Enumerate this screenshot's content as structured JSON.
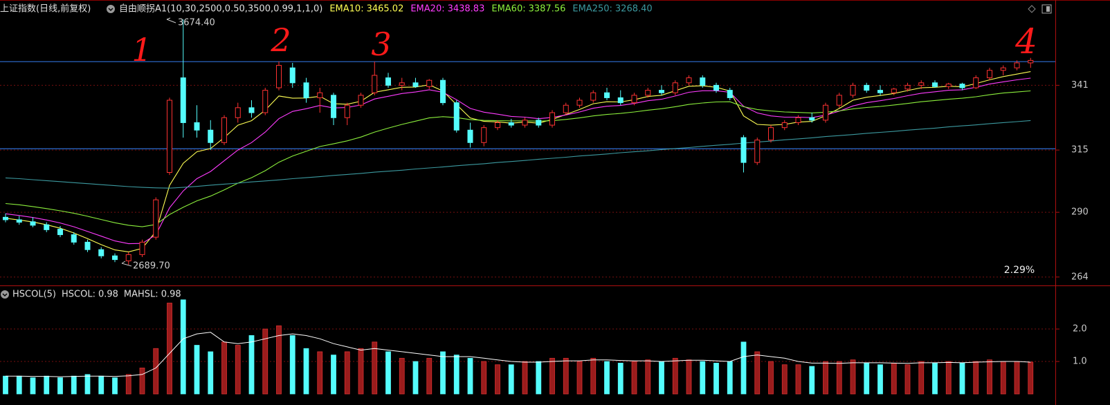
{
  "chart_data": [
    {
      "type": "candlestick",
      "title": "上证指数(日线,前复权)",
      "indicator": "自由顺拐A1(10,30,2500,0.50,3500,0.99,1,1,0)",
      "up_color": "#ff3232",
      "down_color": "#54fcfc",
      "open": [
        2880,
        2870,
        2862,
        2850,
        2832,
        2810,
        2780,
        2750,
        2725,
        2705,
        2730,
        2800,
        3060,
        3440,
        3260,
        3230,
        3180,
        3280,
        3320,
        3300,
        3400,
        3480,
        3420,
        3360,
        3370,
        3280,
        3330,
        3380,
        3440,
        3410,
        3420,
        3405,
        3430,
        3340,
        3230,
        3180,
        3240,
        3260,
        3250,
        3270,
        3250,
        3300,
        3330,
        3350,
        3380,
        3360,
        3340,
        3370,
        3390,
        3380,
        3420,
        3440,
        3410,
        3390,
        3200,
        3100,
        3190,
        3240,
        3260,
        3280,
        3270,
        3330,
        3370,
        3410,
        3390,
        3380,
        3395,
        3410,
        3420,
        3405,
        3415,
        3400,
        3440,
        3470,
        3480,
        3500
      ],
      "high": [
        2895,
        2885,
        2880,
        2860,
        2845,
        2820,
        2790,
        2760,
        2735,
        2740,
        2790,
        2960,
        3360,
        3674.4,
        3330,
        3270,
        3290,
        3340,
        3350,
        3400,
        3505,
        3500,
        3440,
        3400,
        3380,
        3340,
        3380,
        3505,
        3460,
        3440,
        3440,
        3435,
        3440,
        3350,
        3260,
        3250,
        3270,
        3275,
        3280,
        3280,
        3310,
        3340,
        3360,
        3390,
        3400,
        3390,
        3380,
        3400,
        3410,
        3430,
        3450,
        3450,
        3420,
        3400,
        3210,
        3200,
        3250,
        3270,
        3290,
        3300,
        3340,
        3380,
        3420,
        3420,
        3410,
        3400,
        3420,
        3430,
        3430,
        3420,
        3420,
        3450,
        3480,
        3490,
        3510,
        3520
      ],
      "low": [
        2860,
        2850,
        2840,
        2820,
        2800,
        2770,
        2740,
        2715,
        2700,
        2689.7,
        2720,
        2790,
        3050,
        3200,
        3200,
        3150,
        3170,
        3260,
        3280,
        3290,
        3390,
        3400,
        3340,
        3300,
        3250,
        3250,
        3320,
        3370,
        3400,
        3390,
        3400,
        3395,
        3330,
        3220,
        3160,
        3165,
        3230,
        3240,
        3240,
        3240,
        3240,
        3290,
        3320,
        3340,
        3350,
        3330,
        3330,
        3360,
        3370,
        3370,
        3410,
        3400,
        3380,
        3350,
        3060,
        3090,
        3180,
        3230,
        3250,
        3260,
        3260,
        3320,
        3360,
        3380,
        3370,
        3370,
        3385,
        3395,
        3400,
        3395,
        3390,
        3395,
        3430,
        3450,
        3470,
        3480
      ],
      "close": [
        2870,
        2860,
        2848,
        2830,
        2810,
        2780,
        2750,
        2725,
        2710,
        2730,
        2780,
        2950,
        3350,
        3260,
        3230,
        3180,
        3280,
        3320,
        3300,
        3390,
        3490,
        3420,
        3360,
        3380,
        3280,
        3330,
        3370,
        3450,
        3410,
        3420,
        3405,
        3430,
        3340,
        3230,
        3180,
        3240,
        3260,
        3250,
        3270,
        3250,
        3300,
        3330,
        3350,
        3380,
        3360,
        3340,
        3370,
        3390,
        3380,
        3420,
        3440,
        3410,
        3390,
        3360,
        3100,
        3190,
        3240,
        3260,
        3280,
        3270,
        3330,
        3370,
        3410,
        3390,
        3380,
        3395,
        3410,
        3420,
        3405,
        3415,
        3400,
        3440,
        3470,
        3480,
        3500,
        3510
      ],
      "series": [
        {
          "name": "EMA10:",
          "last_label": "3465.02",
          "color": "#ffff54",
          "values": [
            2876,
            2869,
            2861,
            2850,
            2836,
            2817,
            2794,
            2770,
            2749,
            2741,
            2755,
            2823,
            3008,
            3097,
            3143,
            3156,
            3200,
            3250,
            3268,
            3310,
            3367,
            3358,
            3359,
            3366,
            3336,
            3334,
            3346,
            3382,
            3392,
            3402,
            3403,
            3412,
            3387,
            3332,
            3279,
            3265,
            3263,
            3258,
            3262,
            3258,
            3273,
            3293,
            3313,
            3336,
            3344,
            3343,
            3352,
            3365,
            3370,
            3388,
            3406,
            3408,
            3402,
            3387,
            3287,
            3253,
            3250,
            3253,
            3262,
            3265,
            3288,
            3317,
            3350,
            3362,
            3369,
            3377,
            3389,
            3400,
            3402,
            3406,
            3404,
            3417,
            3432,
            3445,
            3455,
            3465.02
          ]
        },
        {
          "name": "EMA20:",
          "last_label": "3438.83",
          "color": "#ff3cff",
          "values": [
            2894,
            2887,
            2879,
            2869,
            2857,
            2842,
            2823,
            2804,
            2785,
            2774,
            2775,
            2810,
            2918,
            2986,
            3035,
            3064,
            3107,
            3150,
            3180,
            3222,
            3276,
            3305,
            3316,
            3329,
            3319,
            3321,
            3331,
            3355,
            3366,
            3377,
            3383,
            3392,
            3382,
            3352,
            3317,
            3302,
            3294,
            3285,
            3282,
            3276,
            3281,
            3291,
            3303,
            3318,
            3326,
            3329,
            3337,
            3348,
            3354,
            3367,
            3382,
            3388,
            3388,
            3382,
            3326,
            3299,
            3287,
            3282,
            3282,
            3280,
            3290,
            3306,
            3327,
            3340,
            3348,
            3357,
            3368,
            3378,
            3384,
            3390,
            3392,
            3402,
            3415,
            3424,
            3432,
            3438.83
          ]
        },
        {
          "name": "EMA60:",
          "last_label": "3387.56",
          "color": "#8cf03c",
          "values": [
            2935,
            2930,
            2923,
            2915,
            2906,
            2896,
            2884,
            2871,
            2858,
            2848,
            2842,
            2851,
            2891,
            2920,
            2946,
            2965,
            2990,
            3017,
            3039,
            3067,
            3101,
            3126,
            3145,
            3164,
            3175,
            3187,
            3202,
            3222,
            3238,
            3253,
            3266,
            3279,
            3284,
            3280,
            3272,
            3269,
            3268,
            3267,
            3267,
            3266,
            3268,
            3273,
            3279,
            3287,
            3293,
            3297,
            3303,
            3310,
            3316,
            3324,
            3333,
            3339,
            3343,
            3344,
            3324,
            3313,
            3307,
            3303,
            3301,
            3299,
            3302,
            3307,
            3315,
            3321,
            3325,
            3331,
            3337,
            3344,
            3349,
            3354,
            3358,
            3364,
            3372,
            3379,
            3383,
            3387.56
          ]
        },
        {
          "name": "EMA250:",
          "last_label": "3268.40",
          "color": "#3c9aa0",
          "values": [
            3038,
            3035,
            3031,
            3027,
            3023,
            3019,
            3015,
            3011,
            3007,
            3003,
            3000,
            2998,
            2997,
            3000,
            3004,
            3009,
            3013,
            3017,
            3022,
            3026,
            3030,
            3035,
            3039,
            3043,
            3048,
            3052,
            3056,
            3061,
            3065,
            3069,
            3074,
            3078,
            3082,
            3087,
            3091,
            3095,
            3100,
            3104,
            3108,
            3113,
            3117,
            3121,
            3126,
            3130,
            3134,
            3139,
            3143,
            3147,
            3152,
            3156,
            3160,
            3165,
            3169,
            3173,
            3178,
            3182,
            3186,
            3191,
            3195,
            3199,
            3204,
            3208,
            3212,
            3217,
            3221,
            3225,
            3230,
            3234,
            3238,
            3243,
            3247,
            3251,
            3256,
            3260,
            3264,
            3268.4
          ]
        }
      ],
      "ylim": [
        2609,
        3697
      ],
      "yticks": [
        {
          "value": 3410,
          "label": "341"
        },
        {
          "value": 3150,
          "label": "315"
        },
        {
          "value": 2900,
          "label": "290"
        },
        {
          "value": 2640,
          "label": "264"
        }
      ],
      "hlines": [
        3505,
        3155
      ],
      "annotations": [
        "3674.40",
        "2689.70",
        "2.29%",
        "1",
        "2",
        "3",
        "4"
      ]
    },
    {
      "type": "bar",
      "title": "HSCOL(5)",
      "series": [
        {
          "name": "HSCOL:",
          "last_label": "0.98",
          "values": [
            0.55,
            0.55,
            0.5,
            0.55,
            0.5,
            0.55,
            0.6,
            0.55,
            0.5,
            0.6,
            0.8,
            1.4,
            2.8,
            2.9,
            1.5,
            1.3,
            1.6,
            1.5,
            1.8,
            2.0,
            2.1,
            1.8,
            1.4,
            1.3,
            1.2,
            1.3,
            1.4,
            1.6,
            1.3,
            1.1,
            1.0,
            1.1,
            1.3,
            1.2,
            1.1,
            1.0,
            0.9,
            0.9,
            1.0,
            1.0,
            1.1,
            1.1,
            1.0,
            1.1,
            1.0,
            0.95,
            1.0,
            1.05,
            1.0,
            1.1,
            1.05,
            1.0,
            0.95,
            1.0,
            1.6,
            1.3,
            1.0,
            0.9,
            0.9,
            0.85,
            1.0,
            1.0,
            1.05,
            0.95,
            0.9,
            0.95,
            0.9,
            1.0,
            0.95,
            1.0,
            0.95,
            1.0,
            1.05,
            1.0,
            1.0,
            0.98
          ]
        },
        {
          "name": "MAHSL:",
          "last_label": "0.98",
          "color": "#ffffff",
          "values": [
            0.55,
            0.55,
            0.54,
            0.54,
            0.53,
            0.54,
            0.55,
            0.55,
            0.54,
            0.56,
            0.6,
            0.8,
            1.25,
            1.7,
            1.85,
            1.9,
            1.6,
            1.55,
            1.6,
            1.7,
            1.8,
            1.85,
            1.8,
            1.7,
            1.55,
            1.45,
            1.35,
            1.4,
            1.35,
            1.3,
            1.25,
            1.2,
            1.15,
            1.15,
            1.15,
            1.1,
            1.05,
            1.0,
            0.98,
            0.98,
            1.0,
            1.02,
            1.02,
            1.05,
            1.05,
            1.03,
            1.02,
            1.02,
            1.0,
            1.02,
            1.04,
            1.04,
            1.02,
            1.0,
            1.15,
            1.2,
            1.15,
            1.1,
            1.0,
            0.95,
            0.95,
            0.94,
            0.96,
            0.96,
            0.96,
            0.95,
            0.94,
            0.96,
            0.96,
            0.97,
            0.96,
            0.98,
            0.99,
            1.0,
            1.0,
            0.98
          ]
        }
      ],
      "ylim": [
        0,
        3.3
      ],
      "yticks": [
        {
          "value": 2,
          "label": "2.0"
        },
        {
          "value": 1,
          "label": "1.0"
        }
      ]
    }
  ]
}
